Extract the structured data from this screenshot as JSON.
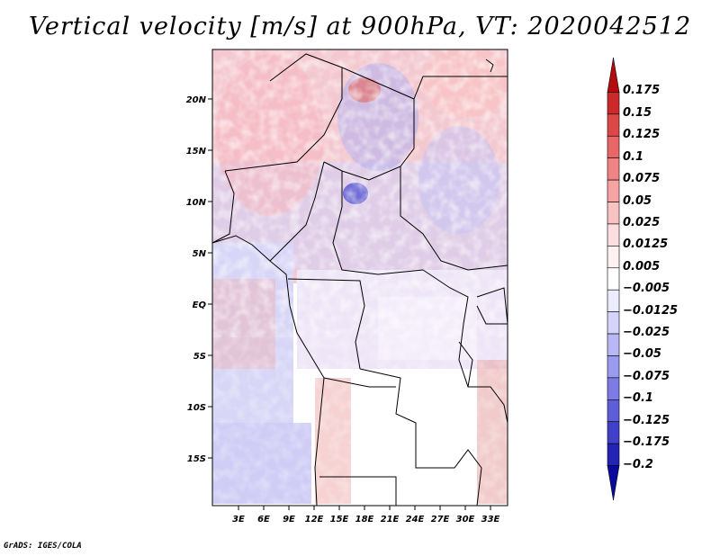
{
  "title": "Vertical velocity [m/s] at 900hPa, VT: 2020042512",
  "lat_labels": [
    "20N",
    "15N",
    "10N",
    "5N",
    "EQ",
    "5S",
    "10S",
    "15S"
  ],
  "lon_labels": [
    "3E",
    "6E",
    "9E",
    "12E",
    "15E",
    "18E",
    "21E",
    "24E",
    "27E",
    "30E",
    "33E"
  ],
  "colorbar": {
    "labels": [
      "0.175",
      "0.15",
      "0.125",
      "0.1",
      "0.075",
      "0.05",
      "0.025",
      "0.0125",
      "0.005",
      "−0.005",
      "−0.0125",
      "−0.025",
      "−0.05",
      "−0.075",
      "−0.1",
      "−0.125",
      "−0.175",
      "−0.2"
    ],
    "colors": [
      "#b40d10",
      "#cc2a2a",
      "#dc4848",
      "#e86666",
      "#f08484",
      "#f5a3a3",
      "#f9c2c2",
      "#fcdede",
      "#fff1f1",
      "#ffffff",
      "#ececff",
      "#d4d4fb",
      "#b8b8f5",
      "#9a9aee",
      "#7c7ce4",
      "#5e5ed8",
      "#4040c8",
      "#2323b6",
      "#0a0a9e"
    ]
  },
  "footer": "GrADS: IGES/COLA"
}
